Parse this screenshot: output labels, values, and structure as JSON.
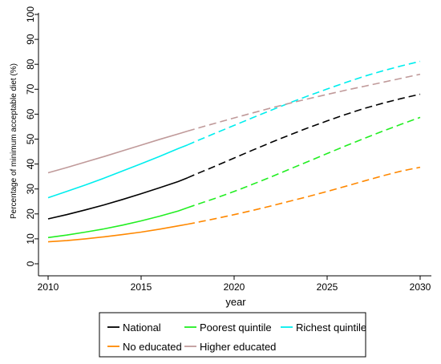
{
  "chart_data": {
    "type": "line",
    "xlabel": "year",
    "ylabel": "Percentage of minimum acceptable diet (%)",
    "xlim": [
      2010,
      2030
    ],
    "ylim": [
      0,
      100
    ],
    "xticks": [
      2010,
      2015,
      2020,
      2025,
      2030
    ],
    "yticks": [
      0,
      10,
      20,
      30,
      40,
      50,
      60,
      70,
      80,
      90,
      100
    ],
    "grid": false,
    "legend_position": "bottom",
    "projection_start_x": 2017.5,
    "x": [
      2010,
      2011,
      2012,
      2013,
      2014,
      2015,
      2016,
      2017,
      2017.5,
      2018,
      2019,
      2020,
      2021,
      2022,
      2023,
      2024,
      2025,
      2026,
      2027,
      2028,
      2029,
      2030
    ],
    "series": [
      {
        "name": "National",
        "color": "#000000",
        "values": [
          18.0,
          19.7,
          21.6,
          23.6,
          25.8,
          28.1,
          30.5,
          33.0,
          34.5,
          36.1,
          39.2,
          42.4,
          45.6,
          48.7,
          51.7,
          54.6,
          57.3,
          59.9,
          62.3,
          64.4,
          66.3,
          68.0
        ]
      },
      {
        "name": "Poorest quintile",
        "color": "#22ee22",
        "values": [
          10.5,
          11.5,
          12.7,
          14.0,
          15.5,
          17.2,
          19.1,
          21.2,
          22.5,
          23.8,
          26.3,
          29.0,
          31.9,
          34.9,
          38.0,
          41.1,
          44.2,
          47.3,
          50.3,
          53.2,
          56.0,
          58.7
        ]
      },
      {
        "name": "Richest quintile",
        "color": "#00eeee",
        "values": [
          26.5,
          29.0,
          31.6,
          34.3,
          37.2,
          40.1,
          43.1,
          46.2,
          47.7,
          49.3,
          52.4,
          55.5,
          58.6,
          61.6,
          64.6,
          67.4,
          70.1,
          72.7,
          75.2,
          77.4,
          79.4,
          81.2
        ]
      },
      {
        "name": "No educated",
        "color": "#ff8800",
        "values": [
          8.8,
          9.3,
          10.0,
          10.8,
          11.7,
          12.7,
          13.9,
          15.2,
          15.9,
          16.6,
          18.1,
          19.7,
          21.4,
          23.2,
          25.1,
          27.0,
          29.0,
          31.1,
          33.2,
          35.3,
          37.2,
          38.7
        ]
      },
      {
        "name": "Higher educated",
        "color": "#c09a9a",
        "values": [
          36.5,
          38.6,
          40.8,
          43.0,
          45.3,
          47.6,
          49.9,
          52.1,
          53.2,
          54.3,
          56.4,
          58.5,
          60.5,
          62.5,
          64.4,
          66.2,
          67.9,
          69.6,
          71.2,
          72.8,
          74.4,
          76.0
        ]
      }
    ]
  }
}
